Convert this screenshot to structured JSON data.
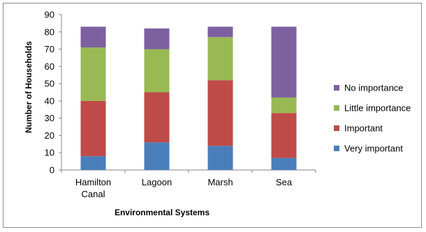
{
  "chart_data": {
    "type": "bar",
    "stacked": true,
    "categories": [
      "Hamilton Canal",
      "Lagoon",
      "Marsh",
      "Sea"
    ],
    "category_lines": [
      [
        "Hamilton",
        "Canal"
      ],
      [
        "Lagoon"
      ],
      [
        "Marsh"
      ],
      [
        "Sea"
      ]
    ],
    "series": [
      {
        "name": "Very important",
        "color": "#4a7ebb",
        "values": [
          8,
          16,
          14,
          7
        ]
      },
      {
        "name": "Important",
        "color": "#be4b48",
        "values": [
          32,
          29,
          38,
          26
        ]
      },
      {
        "name": "Little importance",
        "color": "#98b954",
        "values": [
          31,
          25,
          25,
          9
        ]
      },
      {
        "name": "No importance",
        "color": "#7d60a0",
        "values": [
          12,
          12,
          6,
          41
        ]
      }
    ],
    "legend_order": [
      "No importance",
      "Little importance",
      "Important",
      "Very important"
    ],
    "legend_position": "right",
    "xlabel": "Environmental Systems",
    "ylabel": "Number of Households",
    "ylim": [
      0,
      90
    ],
    "yticks": [
      0,
      10,
      20,
      30,
      40,
      50,
      60,
      70,
      80,
      90
    ],
    "grid": false
  }
}
